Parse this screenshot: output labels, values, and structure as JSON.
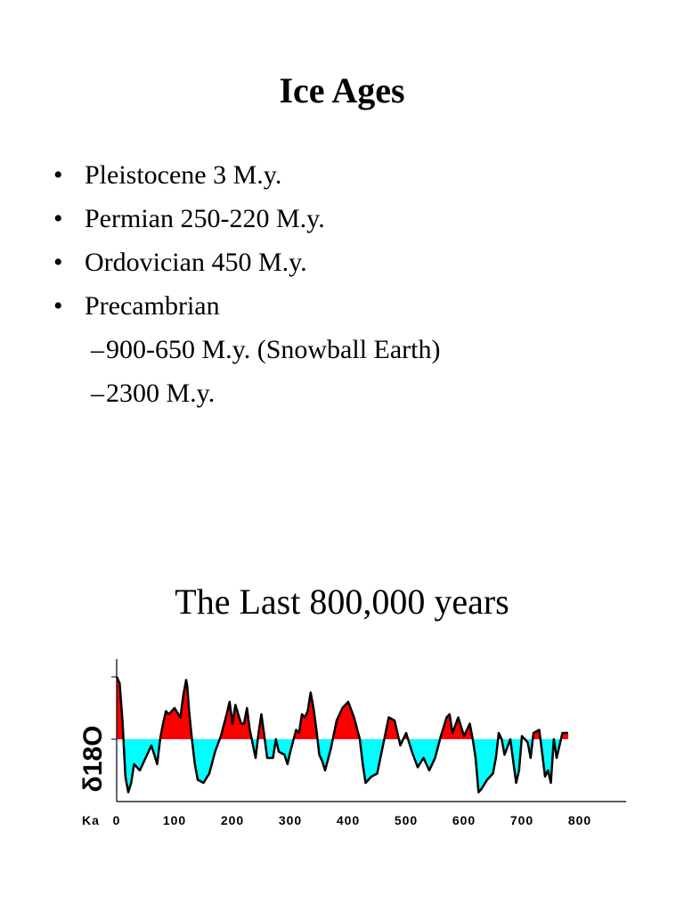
{
  "title": "Ice Ages",
  "bullets": [
    {
      "marker": "•",
      "text": "Pleistocene 3 M.y.",
      "level": 1
    },
    {
      "marker": "•",
      "text": "Permian 250-220 M.y.",
      "level": 1
    },
    {
      "marker": "•",
      "text": "Ordovician 450 M.y.",
      "level": 1
    },
    {
      "marker": "•",
      "text": "Precambrian",
      "level": 1
    },
    {
      "marker": "–",
      "text": "900-650 M.y. (Snowball Earth)",
      "level": 2
    },
    {
      "marker": "–",
      "text": "2300 M.y.",
      "level": 2
    }
  ],
  "subtitle": "The Last 800,000 years",
  "chart_data": {
    "type": "area",
    "xlabel": "Ka",
    "ylabel": "δ18O",
    "x_ticks": [
      0,
      100,
      200,
      300,
      400,
      500,
      600,
      700,
      800
    ],
    "xlim": [
      0,
      880
    ],
    "ylim": [
      -1,
      1
    ],
    "baseline": 0,
    "colors": {
      "above": "#ff0000",
      "below": "#00ffff",
      "line": "#000000"
    },
    "x": [
      0,
      5,
      10,
      15,
      20,
      25,
      30,
      40,
      50,
      60,
      70,
      75,
      80,
      85,
      90,
      100,
      110,
      115,
      120,
      122,
      125,
      130,
      135,
      140,
      150,
      160,
      170,
      180,
      190,
      195,
      200,
      205,
      210,
      215,
      220,
      225,
      230,
      240,
      245,
      250,
      255,
      260,
      270,
      275,
      280,
      290,
      295,
      300,
      310,
      315,
      320,
      325,
      330,
      335,
      340,
      345,
      350,
      355,
      360,
      370,
      380,
      390,
      400,
      410,
      420,
      425,
      430,
      440,
      450,
      460,
      470,
      480,
      490,
      500,
      510,
      520,
      530,
      540,
      550,
      560,
      570,
      575,
      580,
      590,
      600,
      610,
      615,
      620,
      625,
      630,
      640,
      650,
      655,
      660,
      665,
      670,
      680,
      690,
      695,
      700,
      705,
      710,
      715,
      720,
      730,
      740,
      745,
      750,
      755,
      760,
      770,
      780
    ],
    "y": [
      1.0,
      0.9,
      0.3,
      -0.6,
      -0.85,
      -0.7,
      -0.4,
      -0.5,
      -0.3,
      -0.1,
      -0.4,
      0.0,
      0.25,
      0.45,
      0.4,
      0.5,
      0.35,
      0.7,
      0.95,
      0.85,
      0.45,
      0.0,
      -0.4,
      -0.65,
      -0.7,
      -0.55,
      -0.2,
      0.05,
      0.4,
      0.6,
      0.25,
      0.55,
      0.4,
      0.25,
      0.25,
      0.5,
      0.15,
      -0.3,
      0.1,
      0.4,
      0.05,
      -0.3,
      -0.3,
      0.0,
      -0.2,
      -0.25,
      -0.4,
      -0.2,
      0.15,
      0.1,
      0.4,
      0.35,
      0.45,
      0.75,
      0.5,
      0.15,
      -0.25,
      -0.35,
      -0.5,
      -0.15,
      0.3,
      0.5,
      0.6,
      0.35,
      0.0,
      -0.4,
      -0.7,
      -0.6,
      -0.55,
      -0.1,
      0.35,
      0.3,
      -0.1,
      0.1,
      -0.2,
      -0.45,
      -0.3,
      -0.5,
      -0.3,
      0.05,
      0.35,
      0.4,
      0.1,
      0.35,
      0.05,
      0.25,
      0.0,
      -0.3,
      -0.85,
      -0.8,
      -0.65,
      -0.55,
      -0.3,
      0.1,
      0.0,
      -0.25,
      0.0,
      -0.7,
      -0.5,
      0.05,
      0.0,
      -0.05,
      -0.3,
      0.1,
      0.15,
      -0.6,
      -0.5,
      -0.7,
      0.0,
      -0.3,
      0.1,
      0.1
    ]
  }
}
